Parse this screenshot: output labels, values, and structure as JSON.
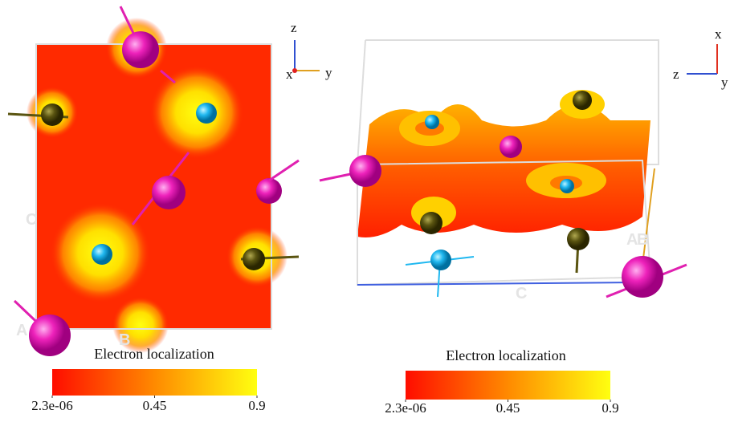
{
  "panels": [
    {
      "axes_triad": [
        "z",
        "x",
        "y"
      ],
      "lattice_labels": [
        "C",
        "A",
        "B"
      ],
      "colorbar": {
        "title": "Electron localization",
        "range": [
          2.3e-06,
          0.9
        ],
        "ticks": [
          {
            "value": 2.3e-06,
            "label": "2.3e-06"
          },
          0.45,
          0.9
        ],
        "colors": [
          "#ff0d00",
          "#ff8a00",
          "#ffff10"
        ]
      }
    },
    {
      "axes_triad": [
        "x",
        "z",
        "y"
      ],
      "lattice_labels": [
        "A",
        "B",
        "C"
      ],
      "colorbar": {
        "title": "Electron localization",
        "range": [
          2.3e-06,
          0.9
        ],
        "ticks": [
          {
            "value": 2.3e-06,
            "label": "2.3e-06"
          },
          0.45,
          0.9
        ],
        "colors": [
          "#ff0d00",
          "#ff8a00",
          "#ffff10"
        ]
      }
    }
  ]
}
